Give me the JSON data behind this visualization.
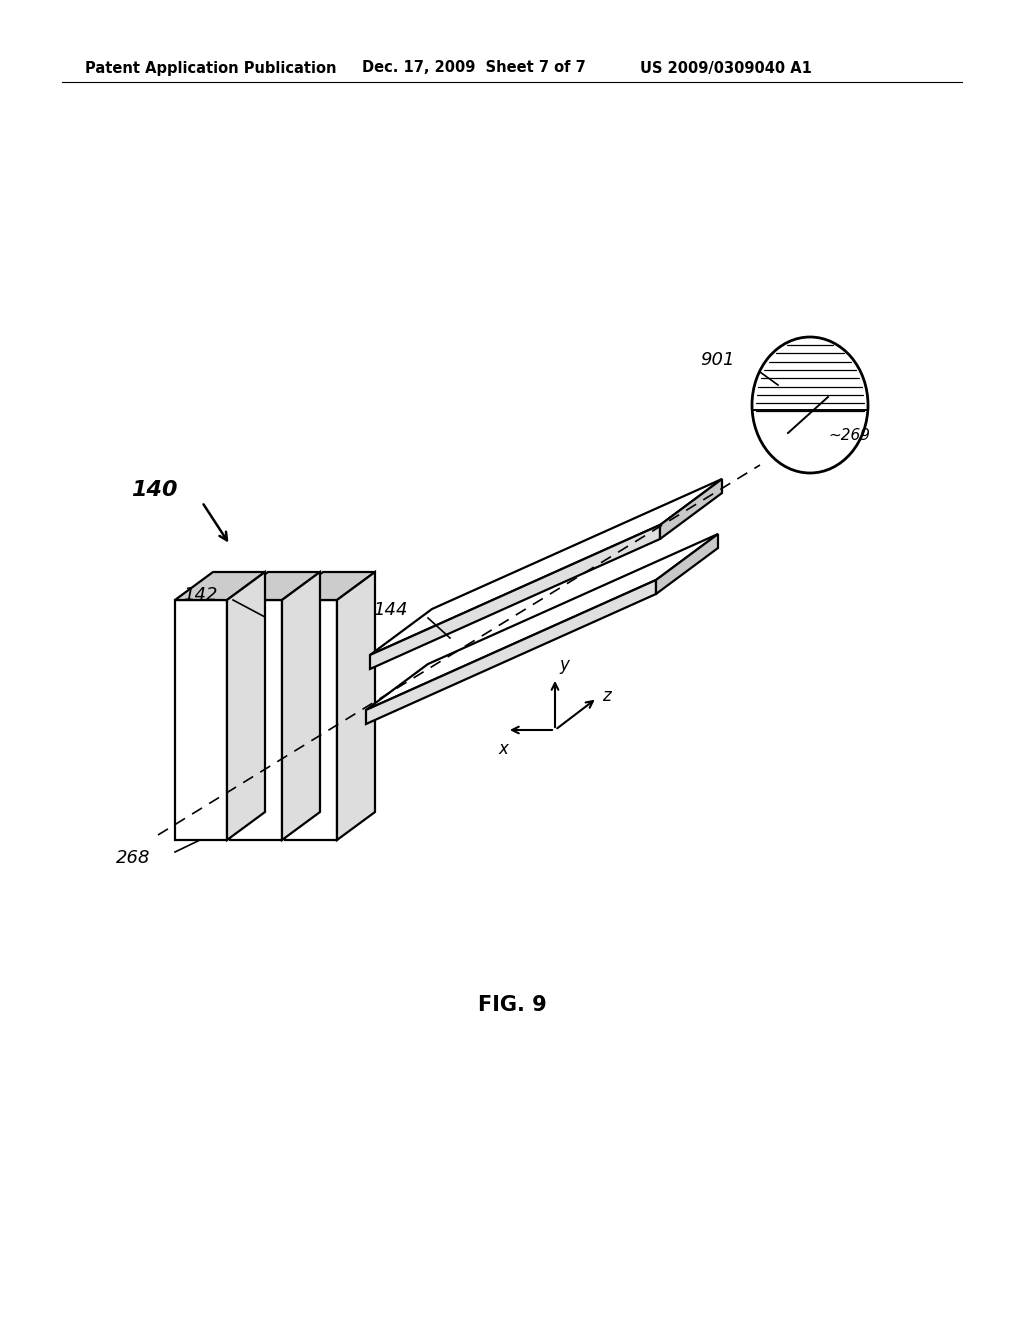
{
  "bg_color": "#ffffff",
  "header_left": "Patent Application Publication",
  "header_mid": "Dec. 17, 2009  Sheet 7 of 7",
  "header_right": "US 2009/0309040 A1",
  "fig_label": "FIG. 9",
  "label_140": "140",
  "label_142": "142",
  "label_144": "144",
  "label_268": "268",
  "label_269": "~269",
  "label_901": "901",
  "lw_main": 1.6,
  "lw_thin": 1.2
}
